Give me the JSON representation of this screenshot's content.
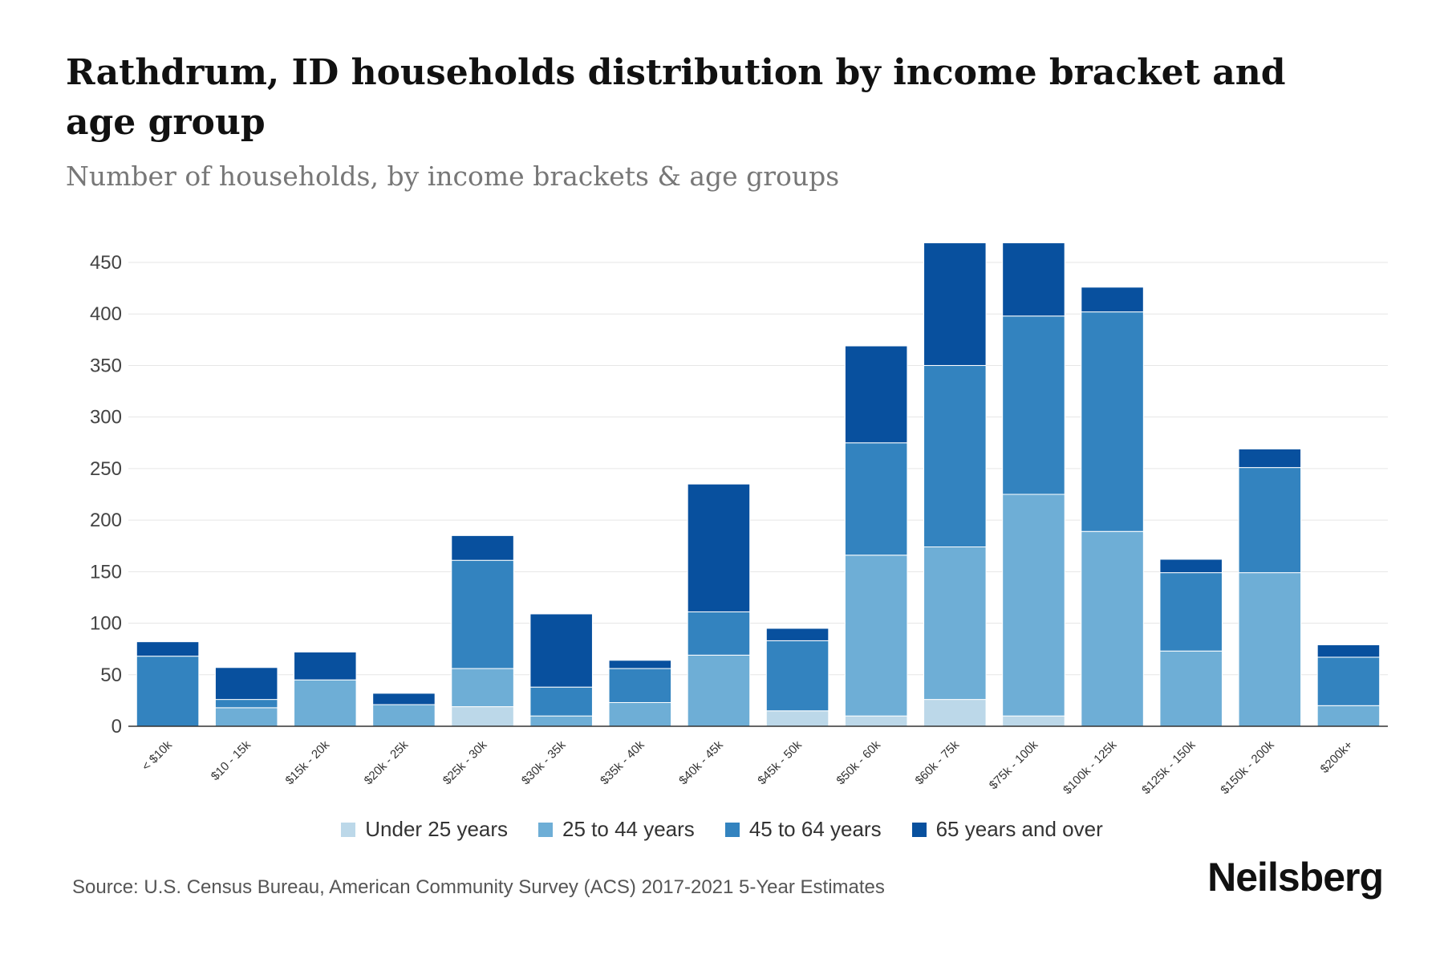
{
  "header": {
    "title": "Rathdrum, ID households distribution by income bracket and age group",
    "subtitle": "Number of households, by income brackets & age groups"
  },
  "footer": {
    "source": "Source: U.S. Census Bureau, American Community Survey (ACS) 2017-2021 5-Year Estimates",
    "brand": "Neilsberg"
  },
  "chart_data": {
    "type": "bar",
    "stacked": true,
    "title": "Rathdrum, ID households distribution by income bracket and age group",
    "subtitle": "Number of households, by income brackets & age groups",
    "xlabel": "",
    "ylabel": "",
    "ylim": [
      0,
      450
    ],
    "yticks": [
      0,
      50,
      100,
      150,
      200,
      250,
      300,
      350,
      400,
      450
    ],
    "grid": true,
    "legend_position": "bottom-center",
    "categories": [
      "< $10k",
      "$10 - 15k",
      "$15k - 20k",
      "$20k - 25k",
      "$25k - 30k",
      "$30k - 35k",
      "$35k - 40k",
      "$40k - 45k",
      "$45k - 50k",
      "$50k - 60k",
      "$60k - 75k",
      "$75k - 100k",
      "$100k - 125k",
      "$125k - 150k",
      "$150k - 200k",
      "$200k+"
    ],
    "series": [
      {
        "name": "Under 25 years",
        "color": "#bcd8e9",
        "values": [
          0,
          0,
          0,
          0,
          19,
          0,
          0,
          0,
          15,
          10,
          26,
          10,
          0,
          0,
          0,
          0
        ]
      },
      {
        "name": "25 to 44 years",
        "color": "#6eaed6",
        "values": [
          0,
          18,
          45,
          21,
          37,
          10,
          23,
          69,
          0,
          156,
          148,
          215,
          189,
          73,
          149,
          20
        ]
      },
      {
        "name": "45 to 64 years",
        "color": "#3383bf",
        "values": [
          68,
          8,
          0,
          0,
          105,
          28,
          33,
          42,
          68,
          109,
          176,
          173,
          213,
          76,
          102,
          47
        ]
      },
      {
        "name": "65 years and over",
        "color": "#08509e",
        "values": [
          14,
          31,
          27,
          11,
          24,
          71,
          8,
          124,
          12,
          94,
          119,
          71,
          24,
          13,
          18,
          12
        ]
      }
    ]
  }
}
